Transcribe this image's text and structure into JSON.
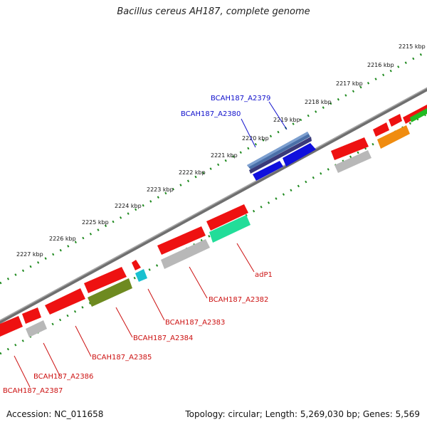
{
  "title": "Bacillus cereus AH187, complete genome",
  "footer": {
    "accession": "Accession: NC_011658",
    "topology": "Topology: circular; Length: 5,269,030 bp; Genes: 5,569"
  },
  "colors": {
    "backbone": "#7d7d7d",
    "ticks": "#1f8a1f",
    "label_plus": "#1010cc",
    "label_minus": "#cc1010"
  },
  "scale_labels": [
    "2215 kbp",
    "2216 kbp",
    "2217 kbp",
    "2218 kbp",
    "2219 kbp",
    "2220 kbp",
    "2221 kbp",
    "2222 kbp",
    "2223 kbp",
    "2224 kbp",
    "2225 kbp",
    "2226 kbp",
    "2227 kbp"
  ],
  "gene_labels": [
    {
      "id": "label-bcah187-a2379",
      "text": "BCAH187_A2379",
      "color": "#1010cc"
    },
    {
      "id": "label-bcah187-a2380",
      "text": "BCAH187_A2380",
      "color": "#1010cc"
    },
    {
      "id": "label-adp1",
      "text": "adP1",
      "color": "#cc1010"
    },
    {
      "id": "label-bcah187-a2382",
      "text": "BCAH187_A2382",
      "color": "#cc1010"
    },
    {
      "id": "label-bcah187-a2383",
      "text": "BCAH187_A2383",
      "color": "#cc1010"
    },
    {
      "id": "label-bcah187-a2384",
      "text": "BCAH187_A2384",
      "color": "#cc1010"
    },
    {
      "id": "label-bcah187-a2385",
      "text": "BCAH187_A2385",
      "color": "#cc1010"
    },
    {
      "id": "label-bcah187-a2386",
      "text": "BCAH187_A2386",
      "color": "#cc1010"
    },
    {
      "id": "label-bcah187-a2387",
      "text": "BCAH187_A2387",
      "color": "#cc1010"
    }
  ]
}
